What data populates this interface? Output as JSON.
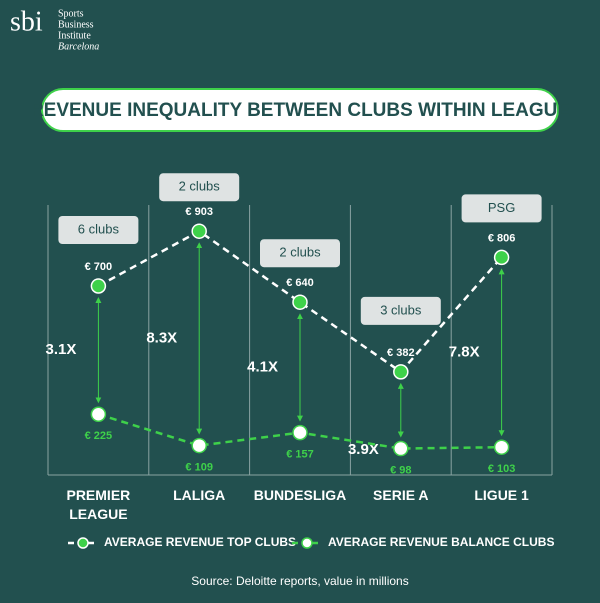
{
  "brand": {
    "logo": "sbi",
    "name_lines": [
      "Sports",
      "Business",
      "Institute",
      "Barcelona"
    ]
  },
  "chart_data": {
    "type": "line",
    "title": "REVENUE INEQUALITY BETWEEN CLUBS WITHIN LEAGUE",
    "categories": [
      "PREMIER LEAGUE",
      "LALIGA",
      "BUNDESLIGA",
      "SERIE A",
      "LIGUE 1"
    ],
    "series": [
      {
        "name": "AVERAGE REVENUE TOP CLUBS",
        "color": "#3ed14a",
        "line_color": "#ffffff",
        "values": [
          700,
          903,
          640,
          382,
          806
        ],
        "value_labels": [
          "€ 700",
          "€ 903",
          "€ 640",
          "€ 382",
          "€ 806"
        ]
      },
      {
        "name": "AVERAGE REVENUE BALANCE CLUBS",
        "color": "#ffffff",
        "line_color": "#3ed14a",
        "values": [
          225,
          109,
          157,
          98,
          103
        ],
        "value_labels": [
          "€ 225",
          "€ 109",
          "€ 157",
          "€ 98",
          "€ 103"
        ]
      }
    ],
    "ratios": [
      "3.1X",
      "8.3X",
      "4.1X",
      "3.9X",
      "7.8X"
    ],
    "top_club_notes": [
      "6 clubs",
      "2 clubs",
      "2 clubs",
      "3 clubs",
      "PSG"
    ],
    "ylim": [
      0,
      1000
    ],
    "source": "Source: Deloitte reports, value in millions"
  }
}
